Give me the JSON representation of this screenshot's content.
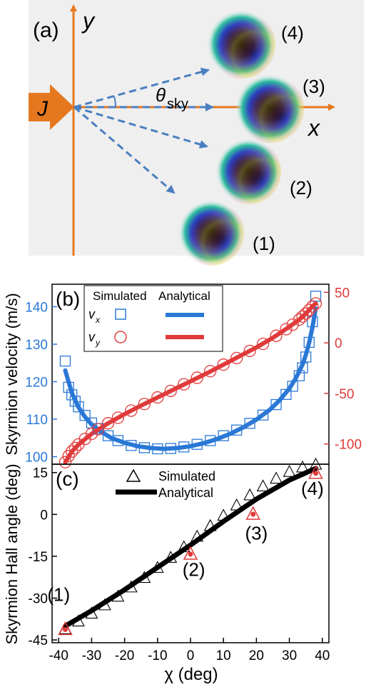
{
  "panel_a": {
    "label": "(a)",
    "axis_y_label": "y",
    "axis_x_label": "x",
    "current_label": "J",
    "angle_label": "θ",
    "angle_subscript": "sky",
    "skyrmions": [
      {
        "label": "(4)"
      },
      {
        "label": "(3)"
      },
      {
        "label": "(2)"
      },
      {
        "label": "(1)"
      }
    ],
    "colors": {
      "axis": "#e5781f",
      "arrow": "#4a7fc1",
      "background": "#efefef"
    }
  },
  "chart_data": [
    {
      "type": "scatter",
      "panel_label": "(b)",
      "xlabel": "",
      "ylabel_left": "Skyrmion velocity (m/s)",
      "ylim_left": [
        98,
        146
      ],
      "yticks_left": [
        100,
        110,
        120,
        130,
        140
      ],
      "ylim_right": [
        -120,
        58
      ],
      "yticks_right": [
        50,
        0,
        -50,
        -100
      ],
      "xlim": [
        -42,
        42
      ],
      "legend": {
        "header_simulated": "Simulated",
        "header_analytical": "Analytical",
        "placement": "top-left",
        "entries": [
          {
            "symbol": "v",
            "subscript": "x",
            "color": "#2a78d6",
            "marker": "square"
          },
          {
            "symbol": "v",
            "subscript": "y",
            "color": "#e03a3a",
            "marker": "circle"
          }
        ]
      },
      "series": [
        {
          "key": "vx_simulated",
          "axis": "left",
          "color": "#2a78d6",
          "marker": "square",
          "points": [
            [
              -38,
              125.5
            ],
            [
              -37,
              118.5
            ],
            [
              -36,
              116.5
            ],
            [
              -35,
              114.8
            ],
            [
              -34,
              113.3
            ],
            [
              -32,
              111
            ],
            [
              -30,
              109
            ],
            [
              -28,
              107.5
            ],
            [
              -25,
              105.6
            ],
            [
              -22,
              104.3
            ],
            [
              -18,
              103
            ],
            [
              -14,
              102.4
            ],
            [
              -10,
              102.1
            ],
            [
              -6,
              102.2
            ],
            [
              -2,
              102.6
            ],
            [
              2,
              103.3
            ],
            [
              6,
              104.3
            ],
            [
              10,
              105.6
            ],
            [
              14,
              107.1
            ],
            [
              18,
              108.9
            ],
            [
              22,
              111.1
            ],
            [
              26,
              113.9
            ],
            [
              29,
              116.6
            ],
            [
              31,
              118.8
            ],
            [
              33,
              121.6
            ],
            [
              34,
              123.7
            ],
            [
              35,
              126.6
            ],
            [
              36,
              130.5
            ],
            [
              37,
              136
            ],
            [
              38,
              142.8
            ]
          ]
        },
        {
          "key": "vx_analytical",
          "axis": "left",
          "color": "#2a78d6",
          "marker": "line",
          "points": [
            [
              -38,
              123
            ],
            [
              -36,
              117
            ],
            [
              -34,
              113.2
            ],
            [
              -32,
              110.6
            ],
            [
              -30,
              108.6
            ],
            [
              -27,
              106.6
            ],
            [
              -24,
              105
            ],
            [
              -20,
              103.7
            ],
            [
              -16,
              102.8
            ],
            [
              -12,
              102.3
            ],
            [
              -8,
              102.1
            ],
            [
              -4,
              102.3
            ],
            [
              0,
              102.8
            ],
            [
              4,
              103.6
            ],
            [
              8,
              104.7
            ],
            [
              12,
              106.1
            ],
            [
              16,
              107.8
            ],
            [
              20,
              109.9
            ],
            [
              24,
              112.5
            ],
            [
              27,
              115
            ],
            [
              30,
              118.2
            ],
            [
              32,
              121
            ],
            [
              34,
              124.6
            ],
            [
              35,
              127.2
            ],
            [
              36,
              130.4
            ],
            [
              37,
              134.5
            ],
            [
              38,
              139.5
            ]
          ]
        },
        {
          "key": "vy_simulated",
          "axis": "right",
          "color": "#e03a3a",
          "marker": "circle",
          "points": [
            [
              -38,
              -118
            ],
            [
              -37,
              -112
            ],
            [
              -36,
              -107.5
            ],
            [
              -35,
              -104
            ],
            [
              -34,
              -100.5
            ],
            [
              -32,
              -95
            ],
            [
              -30,
              -90
            ],
            [
              -28,
              -85.5
            ],
            [
              -25,
              -79.5
            ],
            [
              -22,
              -74
            ],
            [
              -18,
              -67
            ],
            [
              -14,
              -60.5
            ],
            [
              -10,
              -54
            ],
            [
              -6,
              -47.5
            ],
            [
              -2,
              -41
            ],
            [
              2,
              -34.5
            ],
            [
              6,
              -28
            ],
            [
              10,
              -21.5
            ],
            [
              14,
              -15
            ],
            [
              18,
              -8
            ],
            [
              22,
              -1
            ],
            [
              26,
              7
            ],
            [
              29,
              13.5
            ],
            [
              31,
              18
            ],
            [
              33,
              23
            ],
            [
              34,
              26
            ],
            [
              35,
              29
            ],
            [
              36,
              32.5
            ],
            [
              37,
              36
            ],
            [
              38,
              39
            ]
          ]
        },
        {
          "key": "vy_analytical",
          "axis": "right",
          "color": "#e03a3a",
          "marker": "line",
          "points": [
            [
              -38,
              -118
            ],
            [
              -36,
              -107.5
            ],
            [
              -34,
              -100.5
            ],
            [
              -30,
              -90
            ],
            [
              -25,
              -79.5
            ],
            [
              -20,
              -70.5
            ],
            [
              -15,
              -62
            ],
            [
              -10,
              -54
            ],
            [
              -5,
              -46
            ],
            [
              0,
              -38
            ],
            [
              5,
              -30
            ],
            [
              10,
              -21.5
            ],
            [
              15,
              -13
            ],
            [
              20,
              -4.5
            ],
            [
              25,
              5
            ],
            [
              30,
              16
            ],
            [
              33,
              23
            ],
            [
              35,
              29
            ],
            [
              37,
              36
            ],
            [
              38,
              39
            ]
          ]
        }
      ]
    },
    {
      "type": "scatter",
      "panel_label": "(c)",
      "xlabel": "χ (deg)",
      "ylabel": "Skyrmion Hall angle (deg)",
      "ylim": [
        -46,
        18
      ],
      "yticks": [
        -45,
        -30,
        -15,
        0,
        15
      ],
      "xlim": [
        -42,
        42
      ],
      "xticks": [
        -40,
        -30,
        -20,
        -10,
        0,
        10,
        20,
        30,
        40
      ],
      "legend": {
        "placement": "top-center",
        "entries": [
          {
            "label": "Simulated",
            "marker": "triangle"
          },
          {
            "label": "Analytical",
            "marker": "line"
          }
        ]
      },
      "series": [
        {
          "key": "simulated",
          "color": "#000000",
          "marker": "triangle",
          "points": [
            [
              -38,
              -41
            ],
            [
              -34,
              -38.2
            ],
            [
              -30,
              -35.4
            ],
            [
              -26,
              -32.4
            ],
            [
              -22,
              -29.3
            ],
            [
              -18,
              -26
            ],
            [
              -14,
              -22.6
            ],
            [
              -10,
              -19
            ],
            [
              -6,
              -15.4
            ],
            [
              -2,
              -11.6
            ],
            [
              2,
              -7.8
            ],
            [
              6,
              -4
            ],
            [
              10,
              -0.3
            ],
            [
              14,
              3.4
            ],
            [
              18,
              7
            ],
            [
              22,
              10.2
            ],
            [
              26,
              13
            ],
            [
              30,
              15.4
            ],
            [
              34,
              17
            ],
            [
              38,
              18
            ]
          ]
        },
        {
          "key": "analytical",
          "color": "#000000",
          "marker": "line",
          "points": [
            [
              -38,
              -40
            ],
            [
              -30,
              -34.5
            ],
            [
              -20,
              -27
            ],
            [
              -10,
              -19
            ],
            [
              0,
              -11
            ],
            [
              10,
              -2.5
            ],
            [
              20,
              5.5
            ],
            [
              30,
              12.3
            ],
            [
              38,
              16.5
            ]
          ]
        },
        {
          "key": "selected_points",
          "color": "#e03a3a",
          "marker": "red-triangle",
          "points": [
            [
              -38,
              -41
            ],
            [
              0,
              -14
            ],
            [
              19,
              0.3
            ],
            [
              38,
              15
            ]
          ]
        }
      ],
      "annotations": [
        {
          "text": "(1)",
          "x": -40,
          "y": -31
        },
        {
          "text": "(2)",
          "x": 1,
          "y": -22
        },
        {
          "text": "(3)",
          "x": 20,
          "y": -9
        },
        {
          "text": "(4)",
          "x": 37,
          "y": 7
        }
      ],
      "xtick_labels": [
        "-40",
        "-30",
        "-20",
        "-10",
        "0",
        "10",
        "20",
        "30",
        "40"
      ],
      "ytick_labels": [
        "15",
        "0",
        "-15",
        "-30",
        "-45"
      ]
    }
  ]
}
